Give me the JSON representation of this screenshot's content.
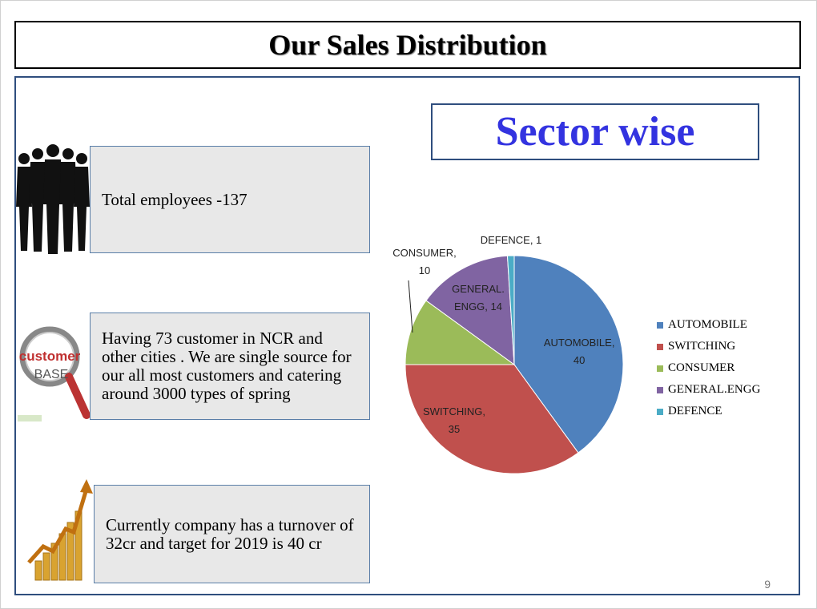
{
  "slide": {
    "title": "Our Sales Distribution",
    "page_number": "9"
  },
  "info_boxes": [
    {
      "text": "Total employees -137",
      "icon": "people-silhouettes-icon"
    },
    {
      "text": "Having 73 customer in NCR and other cities . We are single source for our all most customers and catering around 3000 types of spring",
      "icon": "customer-base-magnifier-icon"
    },
    {
      "text": "Currently company  has a turnover of 32cr and target for 2019 is 40 cr",
      "icon": "growth-coins-chart-icon"
    }
  ],
  "customer_icon_text": {
    "top": "customer",
    "bottom": "BASE"
  },
  "chart_data": {
    "type": "pie",
    "title": "Sector wise",
    "categories": [
      "AUTOMOBILE",
      "SWITCHING",
      "CONSUMER",
      "GENERAL.ENGG",
      "DEFENCE"
    ],
    "values": [
      40,
      35,
      10,
      14,
      1
    ],
    "colors": [
      "#4f81bd",
      "#c0504d",
      "#9bbb59",
      "#8064a2",
      "#4bacc6"
    ],
    "data_labels": [
      [
        "AUTOMOBILE,",
        "40"
      ],
      [
        "SWITCHING,",
        "35"
      ],
      [
        "CONSUMER,",
        "10"
      ],
      [
        "GENERAL.",
        "ENGG, 14"
      ],
      [
        "DEFENCE, 1"
      ]
    ],
    "legend_position": "right"
  }
}
